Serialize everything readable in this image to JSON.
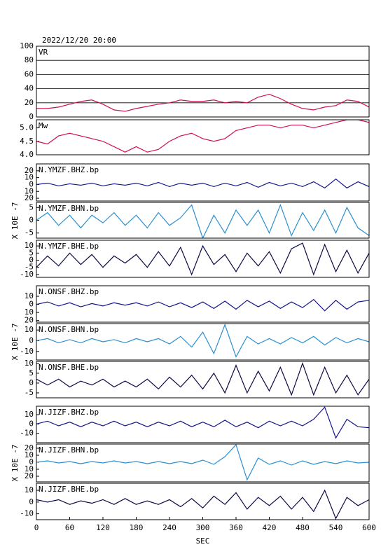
{
  "chart_data": [
    {
      "type": "line",
      "title": "2022/12/20 20:00",
      "label": "VR",
      "color": "#d0104c",
      "grid": true,
      "x": [
        0,
        20,
        40,
        60,
        80,
        100,
        120,
        140,
        160,
        180,
        200,
        220,
        240,
        260,
        280,
        300,
        320,
        340,
        360,
        380,
        400,
        420,
        440,
        460,
        480,
        500,
        520,
        540,
        560,
        580,
        600
      ],
      "values": [
        12,
        12,
        14,
        18,
        22,
        24,
        18,
        10,
        8,
        12,
        15,
        18,
        20,
        24,
        22,
        22,
        24,
        20,
        22,
        20,
        28,
        32,
        26,
        18,
        12,
        10,
        14,
        16,
        24,
        22,
        14
      ],
      "xlim": [
        0,
        600
      ],
      "ylim": [
        0,
        100
      ],
      "yticks": [
        0,
        20,
        40,
        60,
        80,
        100
      ]
    },
    {
      "type": "line",
      "label": "Mw",
      "color": "#d0104c",
      "x": [
        0,
        20,
        40,
        60,
        80,
        100,
        120,
        140,
        160,
        180,
        200,
        220,
        240,
        260,
        280,
        300,
        320,
        340,
        360,
        380,
        400,
        420,
        440,
        460,
        480,
        500,
        520,
        540,
        560,
        580,
        600
      ],
      "values": [
        4.5,
        4.4,
        4.7,
        4.8,
        4.7,
        4.6,
        4.5,
        4.3,
        4.1,
        4.3,
        4.1,
        4.2,
        4.5,
        4.7,
        4.8,
        4.6,
        4.5,
        4.6,
        4.9,
        5.0,
        5.1,
        5.1,
        5.0,
        5.1,
        5.1,
        5.0,
        5.1,
        5.2,
        5.3,
        5.3,
        5.2
      ],
      "xlim": [
        0,
        600
      ],
      "ylim": [
        4.0,
        5.3
      ],
      "yticks": [
        {
          "value": 4.0,
          "label": "4.0"
        },
        {
          "value": 4.5,
          "label": "4.5"
        },
        {
          "value": 5.0,
          "label": "5.0"
        }
      ]
    },
    {
      "type": "line",
      "label": "N.YMZF.BHZ.bp",
      "ylabel": "X 10E -7",
      "color": "#14148c",
      "x": [
        0,
        20,
        40,
        60,
        80,
        100,
        120,
        140,
        160,
        180,
        200,
        220,
        240,
        260,
        280,
        300,
        320,
        340,
        360,
        380,
        400,
        420,
        440,
        460,
        480,
        500,
        520,
        540,
        560,
        580,
        600
      ],
      "values": [
        0,
        2,
        -2,
        1,
        -1,
        2,
        -2,
        1,
        -1,
        2,
        -2,
        3,
        -3,
        2,
        -1,
        2,
        -3,
        2,
        -2,
        3,
        -4,
        3,
        -2,
        2,
        -3,
        4,
        -5,
        8,
        -5,
        4,
        -3
      ],
      "xlim": [
        0,
        600
      ],
      "ylim": [
        -24,
        30
      ],
      "yticks": [
        20,
        10,
        0,
        {
          "value": -10,
          "label": "10"
        },
        {
          "value": -20,
          "label": "20"
        }
      ]
    },
    {
      "type": "line",
      "label": "N.YMZF.BHN.bp",
      "color": "#2a8fd0",
      "x": [
        0,
        20,
        40,
        60,
        80,
        100,
        120,
        140,
        160,
        180,
        200,
        220,
        240,
        260,
        280,
        300,
        320,
        340,
        360,
        380,
        400,
        420,
        440,
        460,
        480,
        500,
        520,
        540,
        560,
        580,
        600
      ],
      "values": [
        0,
        3,
        -2,
        2,
        -3,
        2,
        -1,
        3,
        -2,
        2,
        -3,
        3,
        -2,
        1,
        6,
        -7,
        2,
        -5,
        4,
        -2,
        4,
        -5,
        6,
        -6,
        3,
        -4,
        4,
        -5,
        5,
        -3,
        -6
      ],
      "xlim": [
        0,
        600
      ],
      "ylim": [
        -7,
        7
      ],
      "yticks": [
        5,
        0,
        -5
      ]
    },
    {
      "type": "line",
      "label": "N.YMZF.BHE.bp",
      "color": "#0a0a46",
      "x": [
        0,
        20,
        40,
        60,
        80,
        100,
        120,
        140,
        160,
        180,
        200,
        220,
        240,
        260,
        280,
        300,
        320,
        340,
        360,
        380,
        400,
        420,
        440,
        460,
        480,
        500,
        520,
        540,
        560,
        580,
        600
      ],
      "values": [
        -5,
        3,
        -4,
        5,
        -3,
        4,
        -5,
        3,
        -2,
        4,
        -5,
        6,
        -4,
        9,
        -10,
        10,
        -3,
        4,
        -8,
        5,
        -4,
        6,
        -9,
        8,
        12,
        -10,
        11,
        -8,
        7,
        -9,
        5
      ],
      "xlim": [
        0,
        600
      ],
      "ylim": [
        -12,
        14
      ],
      "yticks": [
        10,
        5,
        0,
        -5,
        -10
      ]
    },
    {
      "type": "line",
      "label": "N.ONSF.BHZ.bp",
      "ylabel": "X 10E -7",
      "color": "#14148c",
      "x": [
        0,
        20,
        40,
        60,
        80,
        100,
        120,
        140,
        160,
        180,
        200,
        220,
        240,
        260,
        280,
        300,
        320,
        340,
        360,
        380,
        400,
        420,
        440,
        460,
        480,
        500,
        520,
        540,
        560,
        580,
        600
      ],
      "values": [
        0,
        3,
        -2,
        2,
        -3,
        1,
        -2,
        2,
        -1,
        2,
        -2,
        3,
        -3,
        2,
        -4,
        3,
        -5,
        4,
        -6,
        5,
        -3,
        4,
        -5,
        3,
        -4,
        6,
        -8,
        5,
        -6,
        3,
        5
      ],
      "xlim": [
        0,
        600
      ],
      "ylim": [
        -22,
        23
      ],
      "yticks": [
        10,
        0,
        {
          "value": -10,
          "label": "10"
        },
        {
          "value": -20,
          "label": "20"
        }
      ]
    },
    {
      "type": "line",
      "label": "N.ONSF.BHN.bp",
      "color": "#2a8fd0",
      "x": [
        0,
        20,
        40,
        60,
        80,
        100,
        120,
        140,
        160,
        180,
        200,
        220,
        240,
        260,
        280,
        300,
        320,
        340,
        360,
        380,
        400,
        420,
        440,
        460,
        480,
        500,
        520,
        540,
        560,
        580,
        600
      ],
      "values": [
        0,
        2,
        -2,
        1,
        -2,
        2,
        -1,
        1,
        -2,
        2,
        -1,
        2,
        -3,
        4,
        -6,
        8,
        -12,
        15,
        -15,
        4,
        -3,
        2,
        -3,
        3,
        -2,
        4,
        -4,
        3,
        -2,
        2,
        -1
      ],
      "xlim": [
        0,
        600
      ],
      "ylim": [
        -18,
        16
      ],
      "yticks": [
        10,
        0,
        -10
      ]
    },
    {
      "type": "line",
      "label": "N.ONSF.BHE.bp",
      "color": "#0a0a46",
      "x": [
        0,
        20,
        40,
        60,
        80,
        100,
        120,
        140,
        160,
        180,
        200,
        220,
        240,
        260,
        280,
        300,
        320,
        340,
        360,
        380,
        400,
        420,
        440,
        460,
        480,
        500,
        520,
        540,
        560,
        580,
        600
      ],
      "values": [
        2,
        -1,
        2,
        -2,
        1,
        -1,
        2,
        -2,
        1,
        -2,
        2,
        -3,
        3,
        -2,
        4,
        -3,
        5,
        -5,
        9,
        -5,
        6,
        -4,
        8,
        -6,
        10,
        -6,
        8,
        -5,
        4,
        -6,
        2
      ],
      "xlim": [
        0,
        600
      ],
      "ylim": [
        -7.5,
        11
      ],
      "yticks": [
        10,
        5,
        0,
        -5
      ]
    },
    {
      "type": "line",
      "label": "N.JIZF.BHZ.bp",
      "ylabel": "X 10E -7",
      "color": "#14148c",
      "x": [
        0,
        20,
        40,
        60,
        80,
        100,
        120,
        140,
        160,
        180,
        200,
        220,
        240,
        260,
        280,
        300,
        320,
        340,
        360,
        380,
        400,
        420,
        440,
        460,
        480,
        500,
        520,
        540,
        560,
        580,
        600
      ],
      "values": [
        0,
        3,
        -2,
        2,
        -3,
        2,
        -2,
        3,
        -2,
        2,
        -3,
        2,
        -2,
        3,
        -3,
        2,
        -3,
        4,
        -3,
        2,
        -4,
        3,
        -2,
        3,
        -2,
        5,
        18,
        -15,
        5,
        -3,
        -4
      ],
      "xlim": [
        0,
        600
      ],
      "ylim": [
        -20,
        19
      ],
      "yticks": [
        10,
        0,
        -10
      ]
    },
    {
      "type": "line",
      "label": "N.JIZF.BHN.bp",
      "color": "#2a8fd0",
      "x": [
        0,
        20,
        40,
        60,
        80,
        100,
        120,
        140,
        160,
        180,
        200,
        220,
        240,
        260,
        280,
        300,
        320,
        340,
        360,
        380,
        400,
        420,
        440,
        460,
        480,
        500,
        520,
        540,
        560,
        580,
        600
      ],
      "values": [
        0,
        2,
        -1,
        1,
        -2,
        1,
        -1,
        2,
        -1,
        1,
        -2,
        1,
        -2,
        1,
        -2,
        3,
        -3,
        8,
        25,
        -25,
        6,
        -3,
        2,
        -4,
        2,
        -3,
        1,
        -2,
        2,
        -1,
        0
      ],
      "xlim": [
        0,
        600
      ],
      "ylim": [
        -28,
        26
      ],
      "yticks": [
        20,
        10,
        0,
        {
          "value": -10,
          "label": "10"
        },
        {
          "value": -20,
          "label": "20"
        }
      ]
    },
    {
      "type": "line",
      "label": "N.JIZF.BHE.bp",
      "color": "#0a0a46",
      "xlabel": "SEC",
      "x": [
        0,
        20,
        40,
        60,
        80,
        100,
        120,
        140,
        160,
        180,
        200,
        220,
        240,
        260,
        280,
        300,
        320,
        340,
        360,
        380,
        400,
        420,
        440,
        460,
        480,
        500,
        520,
        540,
        560,
        580,
        600
      ],
      "values": [
        2,
        0,
        2,
        -2,
        1,
        -1,
        2,
        -2,
        3,
        -2,
        1,
        -2,
        2,
        -4,
        3,
        -5,
        5,
        -2,
        8,
        -6,
        4,
        -3,
        5,
        -6,
        4,
        -8,
        10,
        -14,
        4,
        -3,
        2
      ],
      "xlim": [
        0,
        600
      ],
      "ylim": [
        -15,
        16
      ],
      "yticks": [
        10,
        0,
        -10
      ],
      "xticks": [
        0,
        60,
        120,
        180,
        240,
        300,
        360,
        420,
        480,
        540,
        600
      ]
    }
  ]
}
